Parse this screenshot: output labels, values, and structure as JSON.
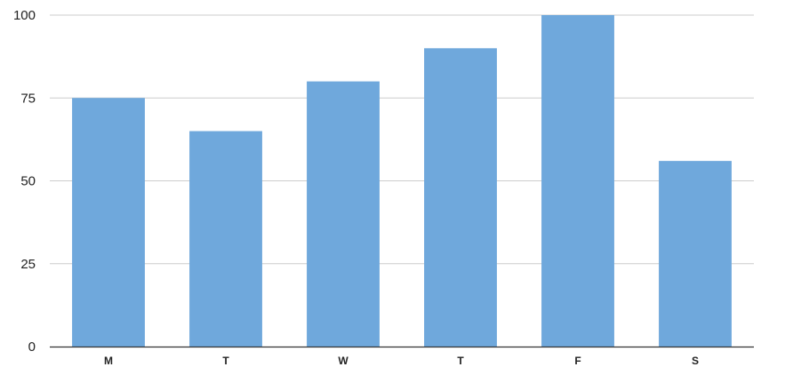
{
  "chart_data": {
    "type": "bar",
    "categories": [
      "M",
      "T",
      "W",
      "T",
      "F",
      "S"
    ],
    "values": [
      75,
      65,
      80,
      90,
      100,
      56
    ],
    "title": "",
    "xlabel": "",
    "ylabel": "",
    "ylim": [
      0,
      100
    ],
    "yticks": [
      0,
      25,
      50,
      75,
      100
    ],
    "grid": true,
    "legend": "none",
    "colors": {
      "bar": "#6fa8dc",
      "grid": "#cccccc",
      "axis": "#333333",
      "text": "#222222"
    }
  }
}
